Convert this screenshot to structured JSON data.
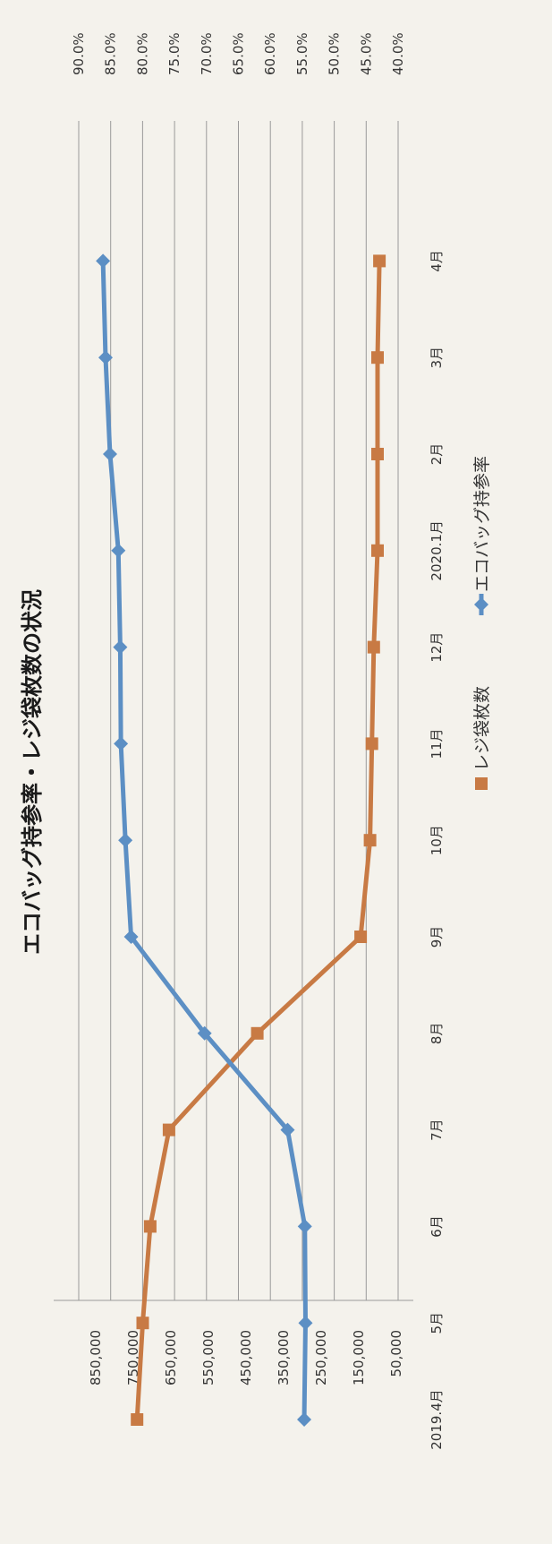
{
  "chart_data": {
    "type": "line",
    "title": "エコバッグ持参率・レジ袋枚数の状況",
    "categories": [
      "2019.4月",
      "5月",
      "6月",
      "7月",
      "8月",
      "9月",
      "10月",
      "11月",
      "12月",
      "2020.1月",
      "2月",
      "3月",
      "4月"
    ],
    "left_axis": {
      "ticks": [
        "850,000",
        "750,000",
        "650,000",
        "550,000",
        "450,000",
        "350,000",
        "250,000",
        "150,000",
        "50,000"
      ],
      "range": [
        50000,
        850000
      ]
    },
    "right_axis": {
      "ticks": [
        "90.0%",
        "85.0%",
        "80.0%",
        "75.0%",
        "70.0%",
        "65.0%",
        "60.0%",
        "55.0%",
        "50.0%",
        "45.0%",
        "40.0%"
      ],
      "range": [
        40,
        90
      ]
    },
    "series": [
      {
        "name": "レジ袋枚数",
        "axis": "left",
        "color": "#c87a44",
        "marker": "square",
        "values": [
          740000,
          725000,
          705000,
          655000,
          420000,
          145000,
          120000,
          115000,
          110000,
          100000,
          100000,
          100000,
          95000
        ]
      },
      {
        "name": "エコバッグ持参率",
        "axis": "right",
        "color": "#5c8fc4",
        "marker": "diamond",
        "values": [
          54.7,
          54.5,
          54.6,
          57.3,
          70.3,
          81.8,
          82.7,
          83.4,
          83.5,
          83.8,
          85.1,
          85.8,
          86.2
        ]
      }
    ],
    "grid": true,
    "legend_position": "bottom"
  }
}
